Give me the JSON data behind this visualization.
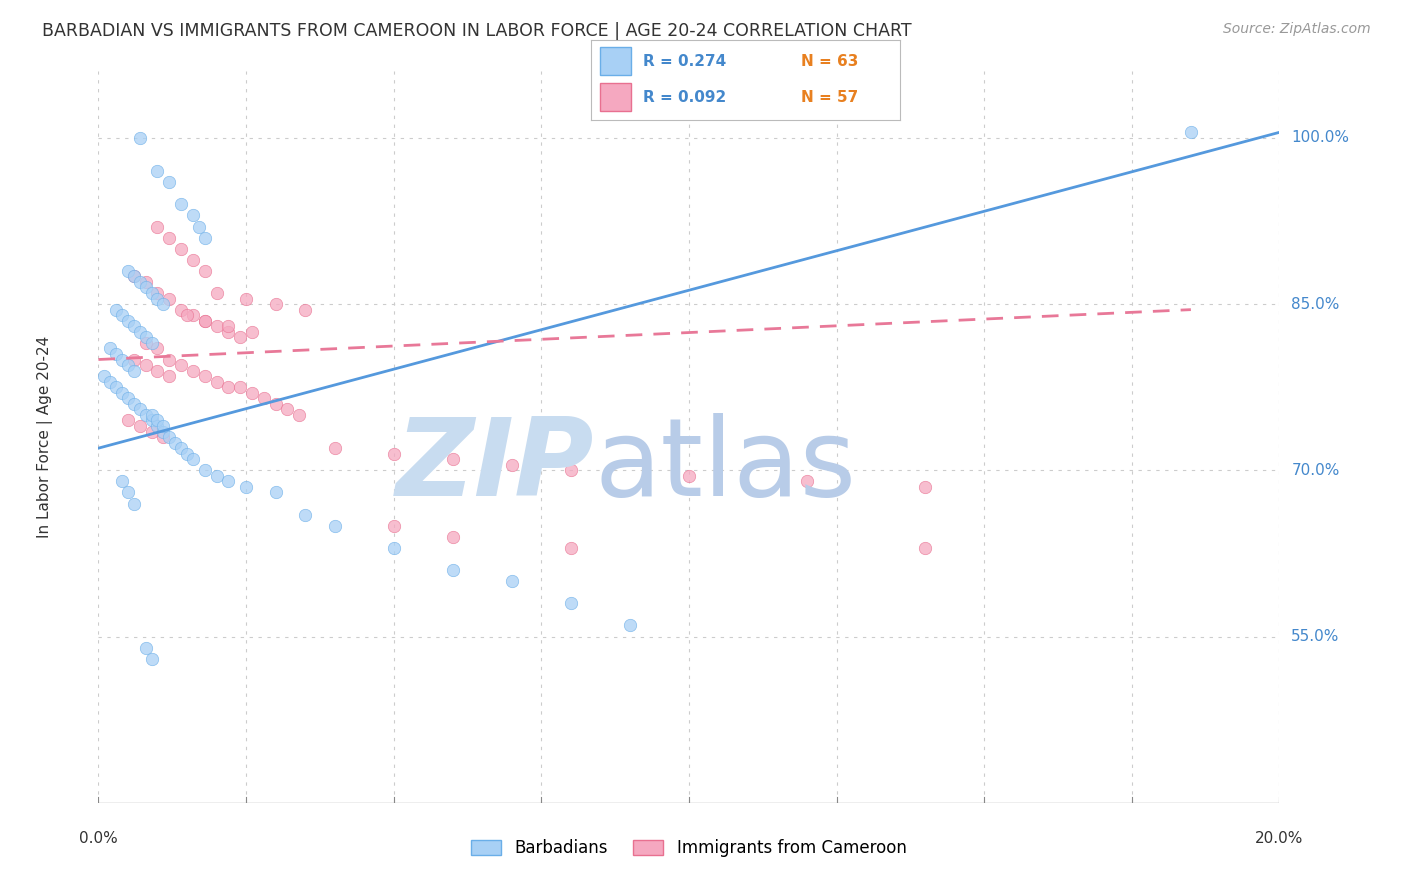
{
  "title": "BARBADIAN VS IMMIGRANTS FROM CAMEROON IN LABOR FORCE | AGE 20-24 CORRELATION CHART",
  "source": "Source: ZipAtlas.com",
  "ylabel": "In Labor Force | Age 20-24",
  "xmin": 0.0,
  "xmax": 0.2,
  "ymin": 0.4,
  "ymax": 1.06,
  "yticks": [
    0.55,
    0.7,
    0.85,
    1.0
  ],
  "ytick_labels": [
    "55.0%",
    "70.0%",
    "85.0%",
    "100.0%"
  ],
  "legend_r1": "R = 0.274",
  "legend_n1": "N = 63",
  "legend_r2": "R = 0.092",
  "legend_n2": "N = 57",
  "color_blue": "#A8D0F5",
  "color_pink": "#F5A8C0",
  "edge_blue": "#6AAEE8",
  "edge_pink": "#E87090",
  "line_blue": "#5599DD",
  "line_pink": "#E87898",
  "text_blue": "#4488CC",
  "text_orange": "#E88020",
  "watermark_zip_color": "#C8DCF0",
  "watermark_atlas_color": "#B8CCE8",
  "background": "#FFFFFF",
  "blue_scatter_x": [
    0.007,
    0.01,
    0.012,
    0.014,
    0.016,
    0.017,
    0.018,
    0.005,
    0.006,
    0.007,
    0.008,
    0.009,
    0.01,
    0.011,
    0.003,
    0.004,
    0.005,
    0.006,
    0.007,
    0.008,
    0.009,
    0.002,
    0.003,
    0.004,
    0.005,
    0.006,
    0.001,
    0.002,
    0.003,
    0.004,
    0.005,
    0.006,
    0.007,
    0.008,
    0.009,
    0.01,
    0.011,
    0.012,
    0.013,
    0.014,
    0.015,
    0.016,
    0.018,
    0.02,
    0.022,
    0.025,
    0.03,
    0.035,
    0.04,
    0.05,
    0.06,
    0.07,
    0.08,
    0.09,
    0.009,
    0.01,
    0.011,
    0.004,
    0.005,
    0.006,
    0.185,
    0.008,
    0.009
  ],
  "blue_scatter_y": [
    1.0,
    0.97,
    0.96,
    0.94,
    0.93,
    0.92,
    0.91,
    0.88,
    0.875,
    0.87,
    0.865,
    0.86,
    0.855,
    0.85,
    0.845,
    0.84,
    0.835,
    0.83,
    0.825,
    0.82,
    0.815,
    0.81,
    0.805,
    0.8,
    0.795,
    0.79,
    0.785,
    0.78,
    0.775,
    0.77,
    0.765,
    0.76,
    0.755,
    0.75,
    0.745,
    0.74,
    0.735,
    0.73,
    0.725,
    0.72,
    0.715,
    0.71,
    0.7,
    0.695,
    0.69,
    0.685,
    0.68,
    0.66,
    0.65,
    0.63,
    0.61,
    0.6,
    0.58,
    0.56,
    0.75,
    0.745,
    0.74,
    0.69,
    0.68,
    0.67,
    1.005,
    0.54,
    0.53
  ],
  "pink_scatter_x": [
    0.01,
    0.012,
    0.014,
    0.016,
    0.018,
    0.006,
    0.008,
    0.01,
    0.012,
    0.014,
    0.016,
    0.018,
    0.02,
    0.022,
    0.024,
    0.008,
    0.01,
    0.012,
    0.014,
    0.016,
    0.018,
    0.02,
    0.022,
    0.024,
    0.026,
    0.028,
    0.03,
    0.032,
    0.034,
    0.005,
    0.007,
    0.009,
    0.011,
    0.04,
    0.05,
    0.06,
    0.07,
    0.08,
    0.1,
    0.12,
    0.14,
    0.05,
    0.06,
    0.08,
    0.14,
    0.02,
    0.025,
    0.03,
    0.035,
    0.006,
    0.008,
    0.01,
    0.012,
    0.015,
    0.018,
    0.022,
    0.026
  ],
  "pink_scatter_y": [
    0.92,
    0.91,
    0.9,
    0.89,
    0.88,
    0.875,
    0.87,
    0.86,
    0.855,
    0.845,
    0.84,
    0.835,
    0.83,
    0.825,
    0.82,
    0.815,
    0.81,
    0.8,
    0.795,
    0.79,
    0.785,
    0.78,
    0.775,
    0.775,
    0.77,
    0.765,
    0.76,
    0.755,
    0.75,
    0.745,
    0.74,
    0.735,
    0.73,
    0.72,
    0.715,
    0.71,
    0.705,
    0.7,
    0.695,
    0.69,
    0.685,
    0.65,
    0.64,
    0.63,
    0.63,
    0.86,
    0.855,
    0.85,
    0.845,
    0.8,
    0.795,
    0.79,
    0.785,
    0.84,
    0.835,
    0.83,
    0.825
  ],
  "blue_line_x": [
    0.0,
    0.2
  ],
  "blue_line_y": [
    0.72,
    1.005
  ],
  "pink_line_x": [
    0.0,
    0.185
  ],
  "pink_line_y": [
    0.8,
    0.845
  ],
  "xtick_positions": [
    0.0,
    0.025,
    0.05,
    0.075,
    0.1,
    0.125,
    0.15,
    0.175,
    0.2
  ]
}
